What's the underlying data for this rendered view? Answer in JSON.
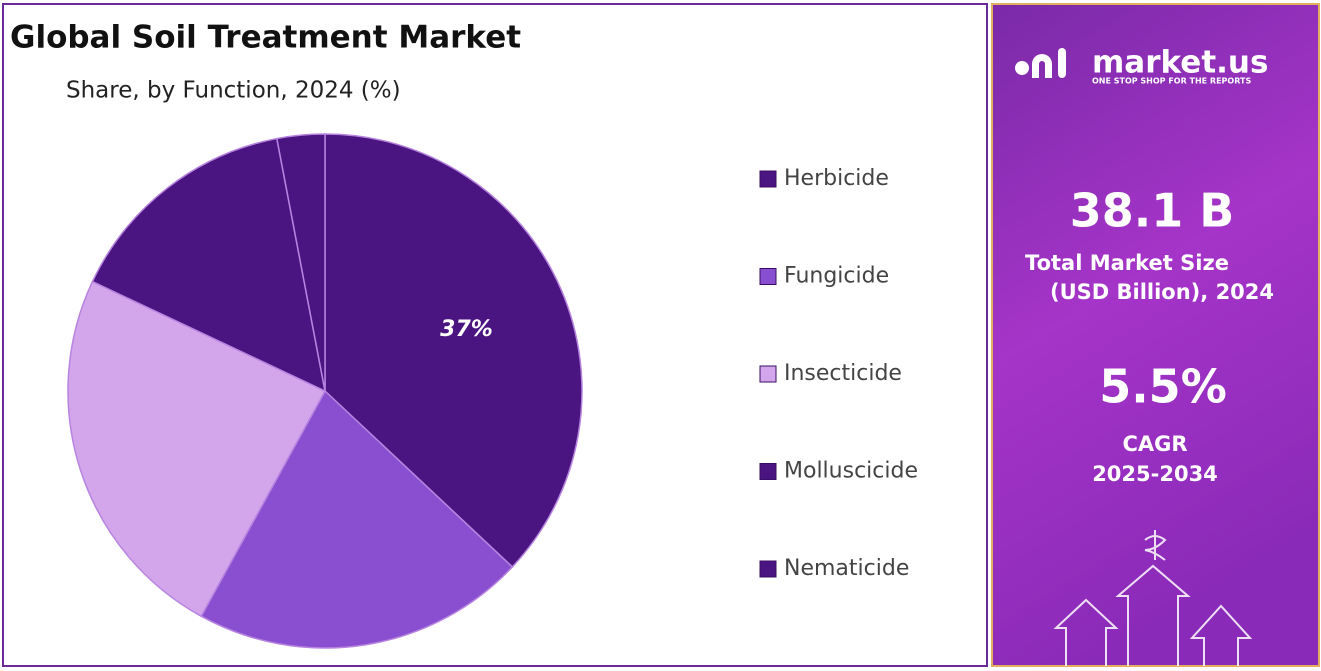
{
  "chart_data": {
    "type": "pie",
    "title": "Global Soil Treatment Market",
    "subtitle": "Share, by Function, 2024 (%)",
    "categories": [
      "Herbicide",
      "Fungicide",
      "Insecticide",
      "Molluscicide",
      "Nematicide"
    ],
    "values": [
      37,
      21,
      24,
      15,
      3
    ],
    "value_labels": [
      "37%",
      null,
      null,
      null,
      null
    ],
    "colors": [
      "#4a1580",
      "#8a4fd0",
      "#d3a6ec",
      "#4a1580",
      "#4a1580"
    ],
    "legend": "right"
  },
  "sidebar": {
    "brand": "market.us",
    "tagline": "ONE STOP SHOP FOR THE REPORTS",
    "market_size": "38.1 B",
    "market_size_label_1": "Total Market Size",
    "market_size_label_2": "(USD Billion), 2024",
    "cagr": "5.5%",
    "cagr_label": "CAGR",
    "cagr_period": "2025-2034"
  }
}
